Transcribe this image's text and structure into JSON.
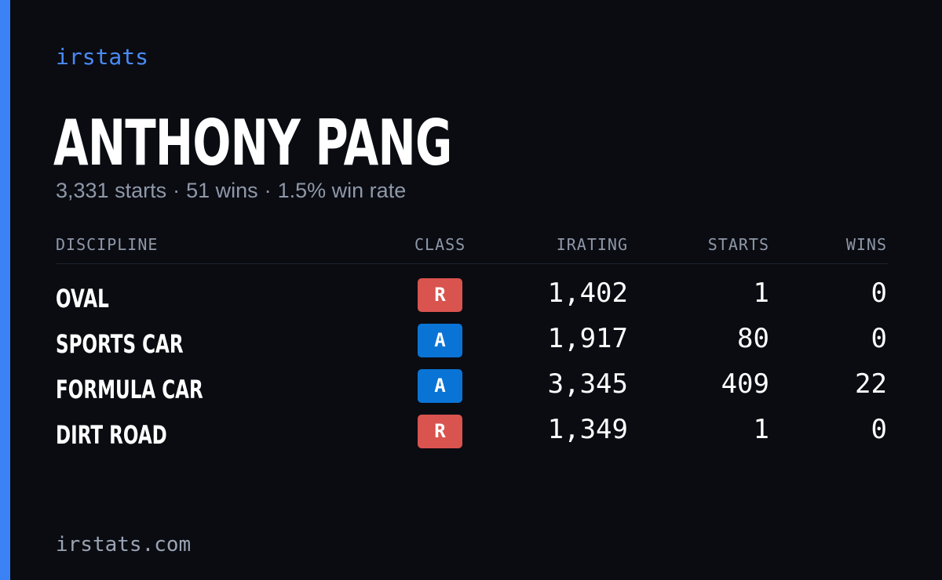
{
  "brand": "irstats",
  "driver": {
    "name": "ANTHONY PANG",
    "summary": {
      "starts": "3,331 starts",
      "wins": "51 wins",
      "win_rate": "1.5% win rate",
      "separator": "·"
    }
  },
  "table": {
    "headers": {
      "discipline": "DISCIPLINE",
      "class": "CLASS",
      "irating": "IRATING",
      "starts": "STARTS",
      "wins": "WINS"
    },
    "rows": [
      {
        "discipline": "OVAL",
        "class": "R",
        "class_color": "#d9534f",
        "irating": "1,402",
        "starts": "1",
        "wins": "0"
      },
      {
        "discipline": "SPORTS CAR",
        "class": "A",
        "class_color": "#0a74d6",
        "irating": "1,917",
        "starts": "80",
        "wins": "0"
      },
      {
        "discipline": "FORMULA CAR",
        "class": "A",
        "class_color": "#0a74d6",
        "irating": "3,345",
        "starts": "409",
        "wins": "22"
      },
      {
        "discipline": "DIRT ROAD",
        "class": "R",
        "class_color": "#d9534f",
        "irating": "1,349",
        "starts": "1",
        "wins": "0"
      }
    ]
  },
  "footer": {
    "url": "irstats.com"
  },
  "colors": {
    "accent": "#3b82f6",
    "background": "#0a0c12",
    "class_r": "#d9534f",
    "class_a": "#0a74d6"
  }
}
